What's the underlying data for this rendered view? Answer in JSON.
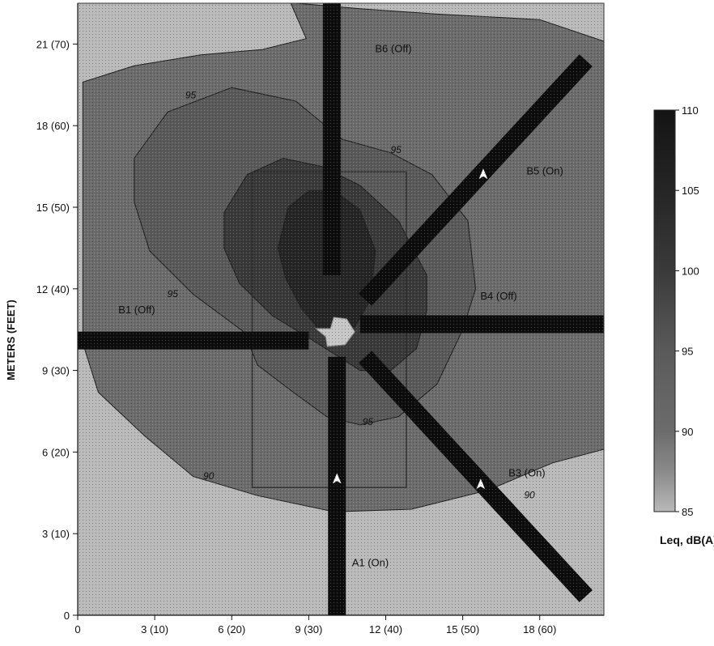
{
  "chart_data": {
    "type": "heatmap",
    "ylabel": "METERS (FEET)",
    "xlabel": "",
    "xlim": [
      0,
      20.5
    ],
    "ylim": [
      0,
      22.5
    ],
    "x_ticks": [
      {
        "value": 0,
        "label": "0"
      },
      {
        "value": 3,
        "label": "3 (10)"
      },
      {
        "value": 6,
        "label": "6 (20)"
      },
      {
        "value": 9,
        "label": "9 (30)"
      },
      {
        "value": 12,
        "label": "12 (40)"
      },
      {
        "value": 15,
        "label": "15 (50)"
      },
      {
        "value": 18,
        "label": "18 (60)"
      }
    ],
    "y_ticks": [
      {
        "value": 0,
        "label": "0"
      },
      {
        "value": 3,
        "label": "3 (10)"
      },
      {
        "value": 6,
        "label": "6 (20)"
      },
      {
        "value": 9,
        "label": "9 (30)"
      },
      {
        "value": 12,
        "label": "12 (40)"
      },
      {
        "value": 15,
        "label": "15 (50)"
      },
      {
        "value": 18,
        "label": "18 (60)"
      },
      {
        "value": 21,
        "label": "21 (70)"
      }
    ],
    "colorbar": {
      "title": "Leq, dB(A)",
      "min": 85,
      "max": 110,
      "ticks": [
        {
          "value": 110,
          "label": "110"
        },
        {
          "value": 105,
          "label": "105"
        },
        {
          "value": 100,
          "label": "100"
        },
        {
          "value": 95,
          "label": "95"
        },
        {
          "value": 90,
          "label": "90"
        },
        {
          "value": 85,
          "label": "85"
        }
      ],
      "colors": {
        "low": "#b9b9b9",
        "high": "#141414"
      }
    },
    "contour_levels": [
      {
        "level": 90,
        "color": "#6c6c6c",
        "points": [
          [
            0.2,
            10
          ],
          [
            0.8,
            8.2
          ],
          [
            2.6,
            6.6
          ],
          [
            4.5,
            5.1
          ],
          [
            7,
            4.4
          ],
          [
            10,
            3.8
          ],
          [
            13,
            3.9
          ],
          [
            16,
            4.6
          ],
          [
            18.5,
            5.6
          ],
          [
            20.5,
            6.1
          ],
          [
            20.5,
            21.1
          ],
          [
            18,
            21.9
          ],
          [
            14,
            22.1
          ],
          [
            11,
            22.3
          ],
          [
            8.5,
            22.5
          ],
          [
            8.3,
            22.5
          ],
          [
            8.9,
            21.2
          ],
          [
            7.2,
            20.8
          ],
          [
            4.8,
            20.6
          ],
          [
            2.2,
            20.2
          ],
          [
            0.2,
            19.6
          ]
        ]
      },
      {
        "level": 95,
        "color": "#5a5a5a",
        "points": [
          [
            2.2,
            16.8
          ],
          [
            3.5,
            18.5
          ],
          [
            6,
            19.4
          ],
          [
            8.5,
            18.9
          ],
          [
            10.3,
            17.5
          ],
          [
            12.2,
            17
          ],
          [
            13.8,
            16.2
          ],
          [
            15.2,
            14.5
          ],
          [
            15.5,
            12
          ],
          [
            15,
            10.5
          ],
          [
            14,
            8.5
          ],
          [
            12.5,
            7.3
          ],
          [
            11,
            7
          ],
          [
            9.7,
            7.3
          ],
          [
            8.4,
            8.2
          ],
          [
            7,
            9.2
          ],
          [
            6.5,
            10.4
          ],
          [
            4.5,
            11.8
          ],
          [
            2.8,
            13.4
          ],
          [
            2.2,
            15.2
          ]
        ]
      },
      {
        "level": 100,
        "color": "#3a3a3a",
        "points": [
          [
            5.7,
            14.8
          ],
          [
            6.6,
            16.2
          ],
          [
            8,
            16.8
          ],
          [
            9.5,
            16.5
          ],
          [
            11,
            15.8
          ],
          [
            12.5,
            14.5
          ],
          [
            13.6,
            12.5
          ],
          [
            13.6,
            11.2
          ],
          [
            13.2,
            9.8
          ],
          [
            12.2,
            9
          ],
          [
            11,
            9
          ],
          [
            10,
            9.6
          ],
          [
            9,
            10.2
          ],
          [
            7.6,
            11
          ],
          [
            6.3,
            12.2
          ],
          [
            5.7,
            13.5
          ]
        ]
      },
      {
        "level": 105,
        "color": "#252525",
        "points": [
          [
            7.8,
            13.5
          ],
          [
            8.2,
            15
          ],
          [
            9,
            15.6
          ],
          [
            10,
            15.6
          ],
          [
            11,
            14.9
          ],
          [
            11.6,
            13.4
          ],
          [
            11.4,
            11.6
          ],
          [
            10.8,
            10.6
          ],
          [
            10.2,
            10.2
          ],
          [
            9.4,
            10.5
          ],
          [
            8.7,
            11.3
          ],
          [
            8.1,
            12.4
          ]
        ]
      }
    ],
    "contour_labels": [
      {
        "text": "90",
        "x": 5.1,
        "y": 5
      },
      {
        "text": "90",
        "x": 17.6,
        "y": 4.3
      },
      {
        "text": "95",
        "x": 4.4,
        "y": 19
      },
      {
        "text": "95",
        "x": 12.4,
        "y": 17
      },
      {
        "text": "95",
        "x": 3.7,
        "y": 11.7
      },
      {
        "text": "95",
        "x": 11.3,
        "y": 7
      }
    ],
    "beams": [
      {
        "name": "A1 (On)",
        "points": [
          [
            10.1,
            0
          ],
          [
            10.1,
            9.5
          ]
        ],
        "label_x": 11.4,
        "label_y": 1.8
      },
      {
        "name": "B1 (Off)",
        "points": [
          [
            0,
            10.1
          ],
          [
            9,
            10.1
          ]
        ],
        "label_x": 2.3,
        "label_y": 11.1
      },
      {
        "name": "B3 (On)",
        "points": [
          [
            11.2,
            9.5
          ],
          [
            19.8,
            0.7
          ]
        ],
        "label_x": 17.5,
        "label_y": 5.1
      },
      {
        "name": "B4 (Off)",
        "points": [
          [
            11,
            10.7
          ],
          [
            20.5,
            10.7
          ]
        ],
        "label_x": 16.4,
        "label_y": 11.6
      },
      {
        "name": "B5 (On)",
        "points": [
          [
            11.2,
            11.6
          ],
          [
            19.8,
            20.4
          ]
        ],
        "label_x": 18.2,
        "label_y": 16.2
      },
      {
        "name": "B6 (Off)",
        "points": [
          [
            9.9,
            12.5
          ],
          [
            9.9,
            22.5
          ]
        ],
        "label_x": 12.3,
        "label_y": 20.7
      }
    ],
    "arrows": [
      {
        "x": 10.1,
        "y": 5.0
      },
      {
        "x": 15.7,
        "y": 4.8
      },
      {
        "x": 15.8,
        "y": 16.2
      }
    ],
    "center_shape": {
      "x": 10.1,
      "y": 10.3
    },
    "rectangle": {
      "x1": 6.8,
      "y1": 4.7,
      "x2": 12.8,
      "y2": 16.3
    }
  }
}
